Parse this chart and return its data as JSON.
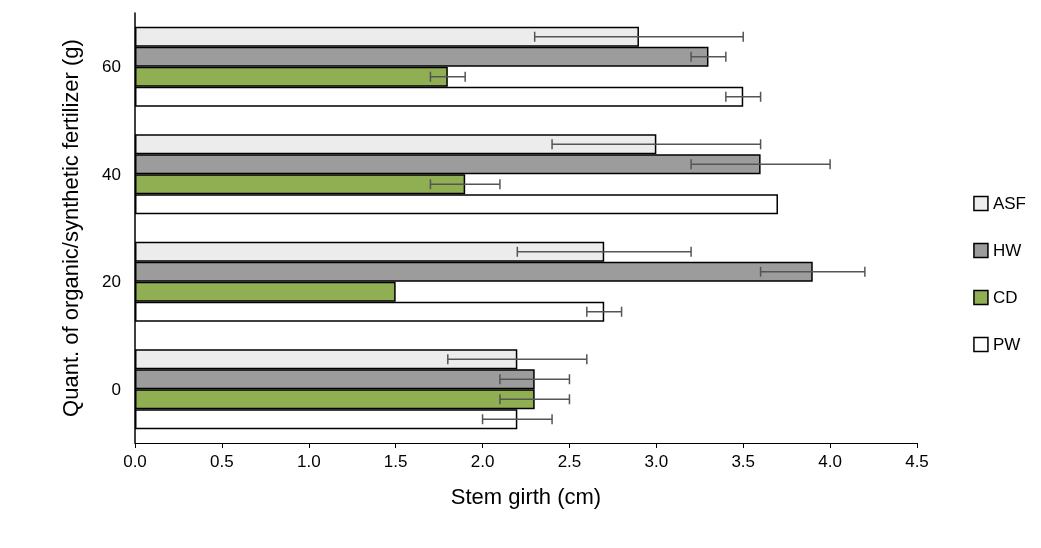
{
  "chart_data": {
    "type": "bar",
    "orientation": "horizontal",
    "xlabel": "Stem girth (cm)",
    "ylabel": "Quant. of organic/synthetic fertilizer (g)",
    "categories": [
      "60",
      "40",
      "20",
      "0"
    ],
    "series": [
      {
        "name": "ASF",
        "color": "#ececec",
        "values": [
          2.9,
          3.0,
          2.7,
          2.2
        ],
        "errors": [
          0.6,
          0.6,
          0.5,
          0.4
        ]
      },
      {
        "name": "HW",
        "color": "#9c9c9c",
        "values": [
          3.3,
          3.6,
          3.9,
          2.3
        ],
        "errors": [
          0.1,
          0.4,
          0.3,
          0.2
        ]
      },
      {
        "name": "CD",
        "color": "#8faf52",
        "values": [
          1.8,
          1.9,
          1.5,
          2.3
        ],
        "errors": [
          0.1,
          0.2,
          null,
          0.2
        ]
      },
      {
        "name": "PW",
        "color": "#ffffff",
        "values": [
          3.5,
          3.7,
          2.7,
          2.2
        ],
        "errors": [
          0.1,
          null,
          0.1,
          0.2
        ]
      }
    ],
    "xlim": [
      0,
      4.5
    ],
    "xticks": [
      {
        "value": 0,
        "label": "0.0"
      },
      {
        "value": 0.5,
        "label": "0.5"
      },
      {
        "value": 1,
        "label": "1.0"
      },
      {
        "value": 1.5,
        "label": "1.5"
      },
      {
        "value": 2,
        "label": "2.0"
      },
      {
        "value": 2.5,
        "label": "2.5"
      },
      {
        "value": 3,
        "label": "3.0"
      },
      {
        "value": 3.5,
        "label": "3.5"
      },
      {
        "value": 4,
        "label": "4.0"
      },
      {
        "value": 4.5,
        "label": "4.5"
      }
    ],
    "grid": false,
    "legend": "right"
  }
}
